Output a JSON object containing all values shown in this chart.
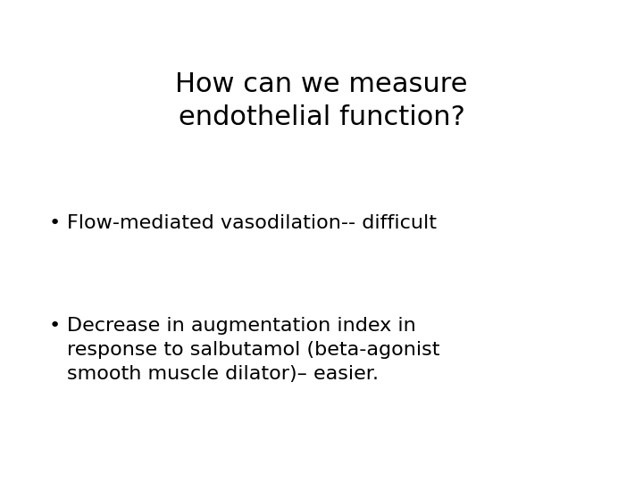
{
  "title_line1": "How can we measure",
  "title_line2": "endothelial function?",
  "bullet1": "Flow-mediated vasodilation-- difficult",
  "bullet2_line1": "Decrease in augmentation index in",
  "bullet2_line2": "response to salbutamol (beta-agonist",
  "bullet2_line3": "smooth muscle dilator)– easier.",
  "background_color": "#ffffff",
  "text_color": "#000000",
  "title_fontsize": 22,
  "body_fontsize": 16,
  "bullet_symbol": "•",
  "font_family": "DejaVu Sans"
}
